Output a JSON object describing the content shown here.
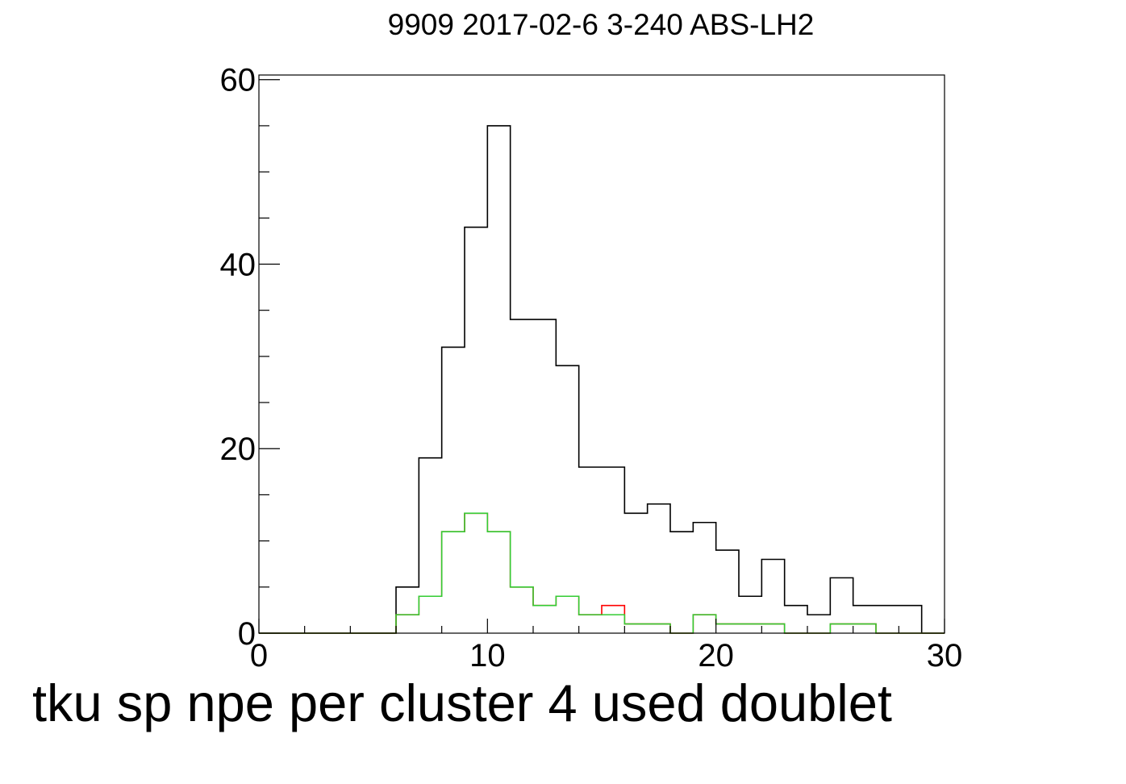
{
  "chart_data": {
    "type": "histogram",
    "title": "9909 2017-02-6 3-240 ABS-LH2",
    "xlabel": "tku sp npe per cluster 4 used doublet",
    "ylabel": "",
    "xlim": [
      0,
      30
    ],
    "ylim": [
      0,
      60.5
    ],
    "bin_width": 1,
    "x_ticks": [
      0,
      10,
      20,
      30
    ],
    "y_ticks": [
      0,
      20,
      40,
      60
    ],
    "grid": false,
    "series": [
      {
        "color": "#000000",
        "bin_starts": [
          0,
          1,
          2,
          3,
          4,
          5,
          6,
          7,
          8,
          9,
          10,
          11,
          12,
          13,
          14,
          15,
          16,
          17,
          18,
          19,
          20,
          21,
          22,
          23,
          24,
          25,
          26,
          27,
          28,
          29
        ],
        "values": [
          0,
          0,
          0,
          0,
          0,
          0,
          5,
          19,
          31,
          44,
          55,
          34,
          34,
          29,
          18,
          18,
          13,
          14,
          11,
          12,
          9,
          4,
          8,
          3,
          2,
          6,
          3,
          3,
          3,
          0
        ]
      },
      {
        "color": "#ff0000",
        "bin_starts": [
          0,
          1,
          2,
          3,
          4,
          5,
          6,
          7,
          8,
          9,
          10,
          11,
          12,
          13,
          14,
          15,
          16,
          17,
          18,
          19,
          20,
          21,
          22,
          23,
          24,
          25,
          26,
          27,
          28,
          29
        ],
        "values": [
          0,
          0,
          0,
          0,
          0,
          0,
          2,
          4,
          11,
          13,
          11,
          5,
          3,
          4,
          2,
          3,
          1,
          1,
          0,
          2,
          1,
          1,
          1,
          0,
          0,
          1,
          1,
          0,
          0,
          0
        ]
      },
      {
        "color": "#33cc33",
        "bin_starts": [
          0,
          1,
          2,
          3,
          4,
          5,
          6,
          7,
          8,
          9,
          10,
          11,
          12,
          13,
          14,
          15,
          16,
          17,
          18,
          19,
          20,
          21,
          22,
          23,
          24,
          25,
          26,
          27,
          28,
          29
        ],
        "values": [
          0,
          0,
          0,
          0,
          0,
          0,
          2,
          4,
          11,
          13,
          11,
          5,
          3,
          4,
          2,
          2,
          1,
          1,
          0,
          2,
          1,
          1,
          1,
          0,
          0,
          1,
          1,
          0,
          0,
          0
        ]
      }
    ]
  }
}
